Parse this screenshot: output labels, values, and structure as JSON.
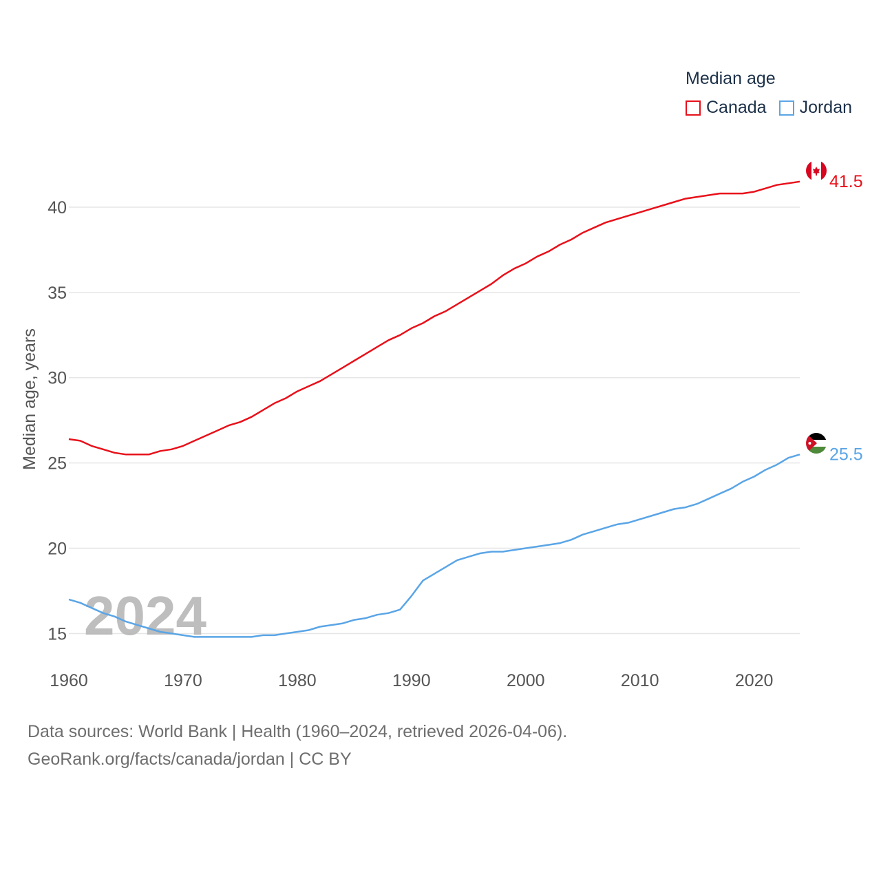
{
  "legend": {
    "title": "Median age",
    "items": [
      {
        "label": "Canada",
        "color": "#e8101a"
      },
      {
        "label": "Jordan",
        "color": "#5aa5e6"
      }
    ]
  },
  "sources": {
    "line1": "Data sources: World Bank | Health (1960–2024, retrieved 2026-04-06).",
    "line2": "GeoRank.org/facts/canada/jordan | CC BY"
  },
  "chart_data": {
    "type": "line",
    "title": "Median age",
    "ylabel": "Median age, years",
    "xlabel": "",
    "year_label": "2024",
    "xlim": [
      1960,
      2024
    ],
    "ylim": [
      13,
      42.5
    ],
    "xticks": [
      1960,
      1970,
      1980,
      1990,
      2000,
      2010,
      2020
    ],
    "yticks": [
      15,
      20,
      25,
      30,
      35,
      40
    ],
    "x": [
      1960,
      1961,
      1962,
      1963,
      1964,
      1965,
      1966,
      1967,
      1968,
      1969,
      1970,
      1971,
      1972,
      1973,
      1974,
      1975,
      1976,
      1977,
      1978,
      1979,
      1980,
      1981,
      1982,
      1983,
      1984,
      1985,
      1986,
      1987,
      1988,
      1989,
      1990,
      1991,
      1992,
      1993,
      1994,
      1995,
      1996,
      1997,
      1998,
      1999,
      2000,
      2001,
      2002,
      2003,
      2004,
      2005,
      2006,
      2007,
      2008,
      2009,
      2010,
      2011,
      2012,
      2013,
      2014,
      2015,
      2016,
      2017,
      2018,
      2019,
      2020,
      2021,
      2022,
      2023,
      2024
    ],
    "series": [
      {
        "name": "Canada",
        "color": "#e8101a",
        "end_label": "41.5",
        "values": [
          26.4,
          26.3,
          26.0,
          25.8,
          25.6,
          25.5,
          25.5,
          25.5,
          25.7,
          25.8,
          26.0,
          26.3,
          26.6,
          26.9,
          27.2,
          27.4,
          27.7,
          28.1,
          28.5,
          28.8,
          29.2,
          29.5,
          29.8,
          30.2,
          30.6,
          31.0,
          31.4,
          31.8,
          32.2,
          32.5,
          32.9,
          33.2,
          33.6,
          33.9,
          34.3,
          34.7,
          35.1,
          35.5,
          36.0,
          36.4,
          36.7,
          37.1,
          37.4,
          37.8,
          38.1,
          38.5,
          38.8,
          39.1,
          39.3,
          39.5,
          39.7,
          39.9,
          40.1,
          40.3,
          40.5,
          40.6,
          40.7,
          40.8,
          40.8,
          40.8,
          40.9,
          41.1,
          41.3,
          41.4,
          41.5
        ]
      },
      {
        "name": "Jordan",
        "color": "#5aa5e6",
        "end_label": "25.5",
        "values": [
          17.0,
          16.8,
          16.5,
          16.2,
          16.0,
          15.7,
          15.5,
          15.3,
          15.1,
          15.0,
          14.9,
          14.8,
          14.8,
          14.8,
          14.8,
          14.8,
          14.8,
          14.9,
          14.9,
          15.0,
          15.1,
          15.2,
          15.4,
          15.5,
          15.6,
          15.8,
          15.9,
          16.1,
          16.2,
          16.4,
          17.2,
          18.1,
          18.5,
          18.9,
          19.3,
          19.5,
          19.7,
          19.8,
          19.8,
          19.9,
          20.0,
          20.1,
          20.2,
          20.3,
          20.5,
          20.8,
          21.0,
          21.2,
          21.4,
          21.5,
          21.7,
          21.9,
          22.1,
          22.3,
          22.4,
          22.6,
          22.9,
          23.2,
          23.5,
          23.9,
          24.2,
          24.6,
          24.9,
          25.3,
          25.5
        ]
      }
    ]
  }
}
